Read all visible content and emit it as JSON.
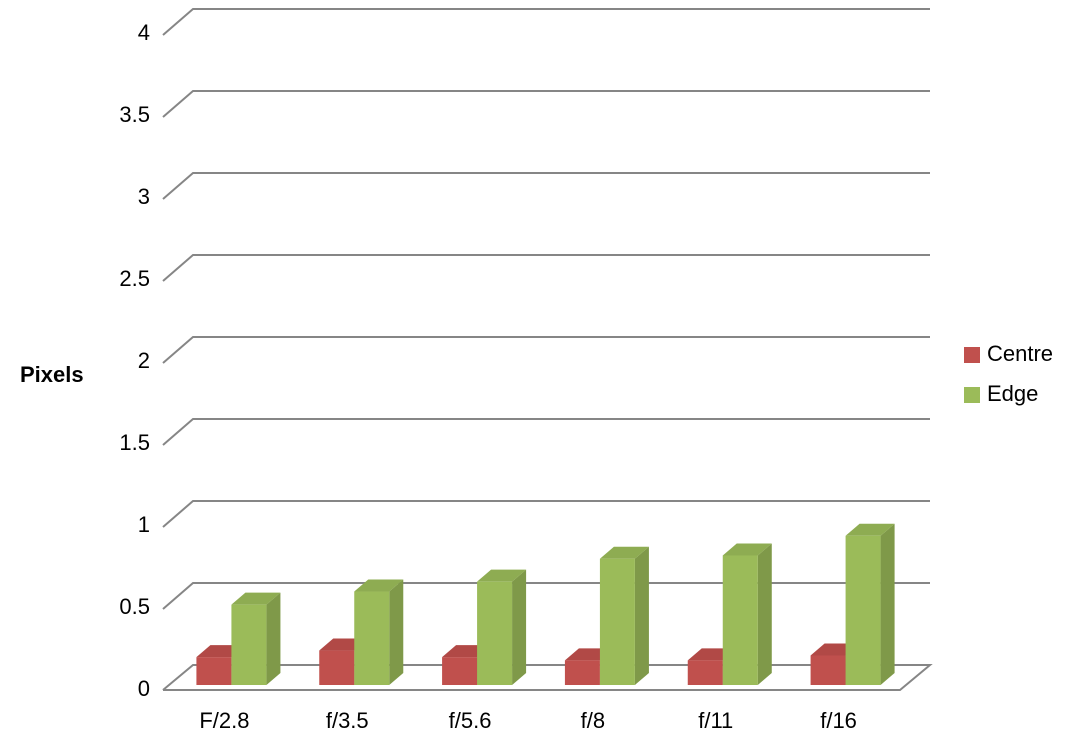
{
  "chart_data": {
    "type": "bar3d",
    "y_label": "Pixels",
    "categories": [
      "F/2.8",
      "f/3.5",
      "f/5.6",
      "f/8",
      "f/11",
      "f/16"
    ],
    "series": [
      {
        "name": "Centre",
        "color": "#c0504d",
        "values": [
          0.17,
          0.21,
          0.17,
          0.15,
          0.15,
          0.18
        ]
      },
      {
        "name": "Edge",
        "color": "#9bbb59",
        "values": [
          0.49,
          0.57,
          0.63,
          0.77,
          0.79,
          0.91
        ]
      }
    ],
    "ylim": [
      0,
      4
    ],
    "yticks": [
      0,
      0.5,
      1,
      1.5,
      2,
      2.5,
      3,
      3.5,
      4
    ],
    "grid": true,
    "legend": "right"
  }
}
